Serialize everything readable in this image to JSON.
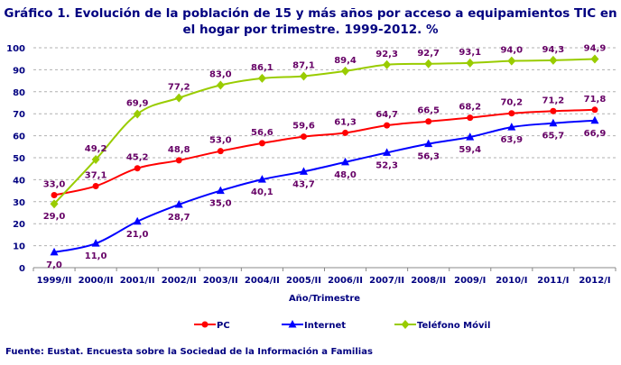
{
  "title": "Gráfico 1. Evolución de la población de 15 y más años por acceso a equipamientos TIC en el hogar por trimestre. 1999-2012. %",
  "source": "Fuente: Eustat. Encuesta sobre la Sociedad de la Información a Familias",
  "chart_data": {
    "type": "line",
    "title": "Gráfico 1. Evolución de la población de 15 y más años por acceso a equipamientos TIC en el hogar por trimestre. 1999-2012. %",
    "xlabel": "Año/Trimestre",
    "ylabel": "",
    "ylim": [
      0,
      100
    ],
    "yticks": [
      0,
      10,
      20,
      30,
      40,
      50,
      60,
      70,
      80,
      90,
      100
    ],
    "grid": "horizontal dashed",
    "legend": "bottom",
    "categories": [
      "1999/II",
      "2000/II",
      "2001/II",
      "2002/II",
      "2003/II",
      "2004/II",
      "2005/II",
      "2006/II",
      "2007/II",
      "2008/II",
      "2009/I",
      "2010/I",
      "2011/I",
      "2012/I"
    ],
    "series": [
      {
        "name": "PC",
        "color": "#ff0000",
        "marker": "circle",
        "values": [
          33.0,
          37.1,
          45.2,
          48.8,
          53.0,
          56.6,
          59.6,
          61.3,
          64.7,
          66.5,
          68.2,
          70.2,
          71.2,
          71.8
        ],
        "labels": [
          "33,0",
          "37,1",
          "45,2",
          "48,8",
          "53,0",
          "56,6",
          "59,6",
          "61,3",
          "64,7",
          "66,5",
          "68,2",
          "70,2",
          "71,2",
          "71,8"
        ]
      },
      {
        "name": "Internet",
        "color": "#0000ff",
        "marker": "triangle",
        "values": [
          7.0,
          11.0,
          21.0,
          28.7,
          35.0,
          40.1,
          43.7,
          48.0,
          52.3,
          56.3,
          59.4,
          63.9,
          65.7,
          66.9
        ],
        "labels": [
          "7,0",
          "11,0",
          "21,0",
          "28,7",
          "35,0",
          "40,1",
          "43,7",
          "48,0",
          "52,3",
          "56,3",
          "59,4",
          "63,9",
          "65,7",
          "66,9"
        ]
      },
      {
        "name": "Teléfono Móvil",
        "color": "#99cc00",
        "marker": "diamond",
        "values": [
          29.0,
          49.2,
          69.9,
          77.2,
          83.0,
          86.1,
          87.1,
          89.4,
          92.3,
          92.7,
          93.1,
          94.0,
          94.3,
          94.9
        ],
        "labels": [
          "29,0",
          "49,2",
          "69,9",
          "77,2",
          "83,0",
          "86,1",
          "87,1",
          "89,4",
          "92,3",
          "92,7",
          "93,1",
          "94,0",
          "94,3",
          "94,9"
        ]
      }
    ],
    "label_color": "#660066",
    "axis_text_color": "#000080"
  }
}
